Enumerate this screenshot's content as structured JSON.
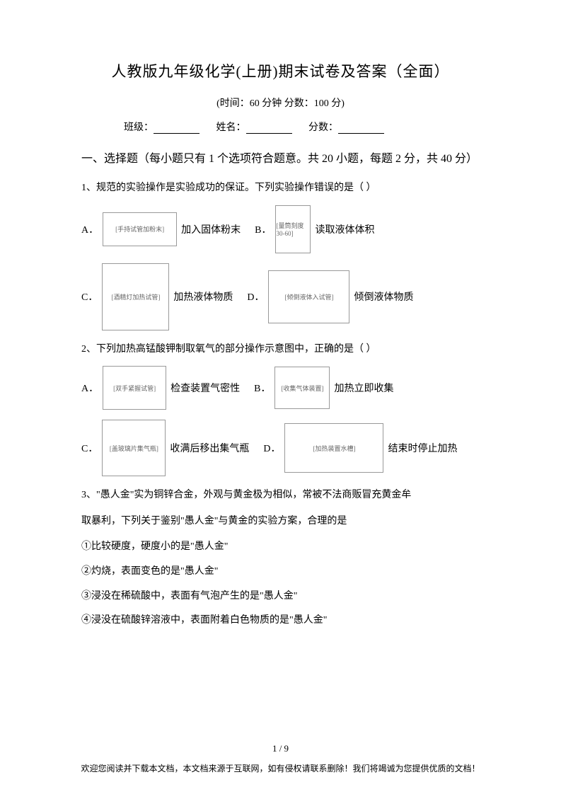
{
  "title": "人教版九年级化学(上册)期末试卷及答案（全面）",
  "subtitle": "(时间：60 分钟    分数：100 分)",
  "info": {
    "class_label": "班级：",
    "name_label": "姓名：",
    "score_label": "分数："
  },
  "section1": {
    "header": "一、选择题（每小题只有 1 个选项符合题意。共 20 小题，每题 2 分，共 40 分）"
  },
  "q1": {
    "text": "1、规范的实验操作是实验成功的保证。下列实验操作错误的是（    ）",
    "optA": {
      "label": "A．",
      "text": "加入固体粉末",
      "diagram": "[手持试管加粉末]"
    },
    "optB": {
      "label": "B．",
      "text": "读取液体体积",
      "diagram": "[量筒刻度30-60]"
    },
    "optC": {
      "label": "C．",
      "text": "加热液体物质",
      "diagram": "[酒精灯加热试管]"
    },
    "optD": {
      "label": "D．",
      "text": "倾倒液体物质",
      "diagram": "[倾倒液体入试管]"
    }
  },
  "q2": {
    "text": "2、下列加热高锰酸钾制取氧气的部分操作示意图中，正确的是（    ）",
    "optA": {
      "label": "A．",
      "text": "检查装置气密性",
      "diagram": "[双手紧握试管]"
    },
    "optB": {
      "label": "B．",
      "text": "加热立即收集",
      "diagram": "[收集气体装置]"
    },
    "optC": {
      "label": "C．",
      "text": "收满后移出集气瓶",
      "diagram": "[盖玻璃片集气瓶]"
    },
    "optD": {
      "label": "D．",
      "text": "结束时停止加热",
      "diagram": "[加热装置水槽]"
    }
  },
  "q3": {
    "line1": "3、\"愚人金\"实为铜锌合金，外观与黄金极为相似，常被不法商贩冒充黄金牟",
    "line2": "取暴利，下列关于鉴别\"愚人金\"与黄金的实验方案，合理的是",
    "item1": "①比较硬度，硬度小的是\"愚人金\"",
    "item2": "②灼烧，表面变色的是\"愚人金\"",
    "item3": "③浸没在稀硫酸中，表面有气泡产生的是\"愚人金\"",
    "item4": "④浸没在硫酸锌溶液中，表面附着白色物质的是\"愚人金\""
  },
  "pageNum": "1 / 9",
  "footer": "欢迎您阅读并下载本文档，本文档来源于互联网，如有侵权请联系删除！我们将竭诚为您提供优质的文档！"
}
